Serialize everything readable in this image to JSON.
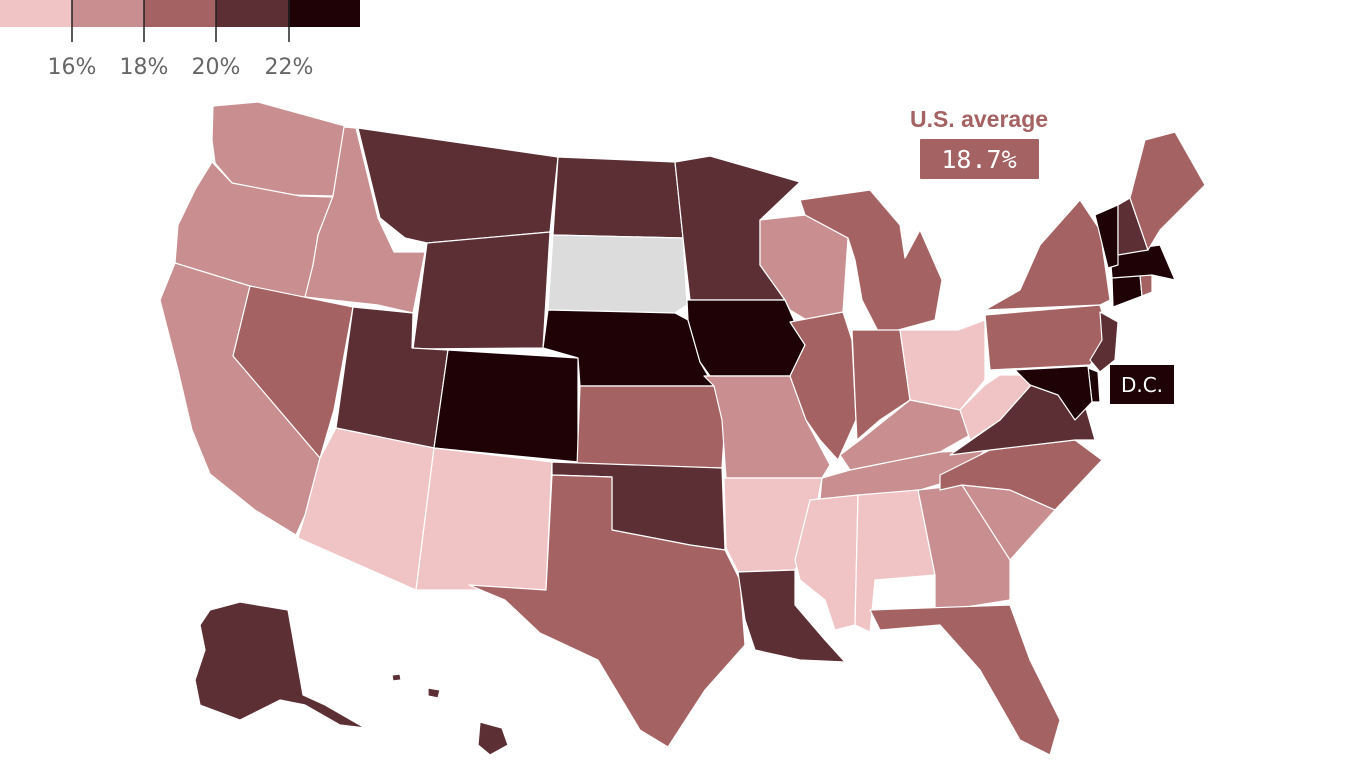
{
  "legend": {
    "swatches": [
      {
        "color": "#f0c4c5",
        "bin": "below 16%"
      },
      {
        "color": "#c98e8f",
        "bin": "16% to 18%"
      },
      {
        "color": "#a56263",
        "bin": "18% to 20%"
      },
      {
        "color": "#5c2f35",
        "bin": "20% to 22%"
      },
      {
        "color": "#1e0206",
        "bin": "22% and above"
      }
    ],
    "ticks": [
      "16%",
      "18%",
      "20%",
      "22%"
    ]
  },
  "us_average": {
    "title": "U.S. average",
    "value": "18.7%",
    "color": "#a56263"
  },
  "dc": {
    "label": "D.C.",
    "color": "#1e0206"
  },
  "no_data_color": "#dcdcdc",
  "state_bins": {
    "WA": 1,
    "OR": 1,
    "CA": 1,
    "ID": 1,
    "NV": 2,
    "MT": 3,
    "WY": 3,
    "UT": 3,
    "AZ": 0,
    "CO": 4,
    "NM": 0,
    "ND": 3,
    "SD": null,
    "NE": 4,
    "KS": 2,
    "OK": 3,
    "TX": 2,
    "MN": 3,
    "IA": 4,
    "MO": 1,
    "AR": 0,
    "LA": 3,
    "WI": 1,
    "IL": 2,
    "MI": 2,
    "IN": 2,
    "OH": 0,
    "KY": 1,
    "TN": 1,
    "MS": 0,
    "AL": 0,
    "GA": 1,
    "FL": 2,
    "SC": 1,
    "NC": 2,
    "VA": 3,
    "WV": 0,
    "PA": 2,
    "NY": 2,
    "NJ": 3,
    "DE": 4,
    "MD": 4,
    "CT": 4,
    "RI": 2,
    "MA": 4,
    "VT": 4,
    "NH": 3,
    "ME": 2,
    "AK": 3,
    "HI": 3
  }
}
